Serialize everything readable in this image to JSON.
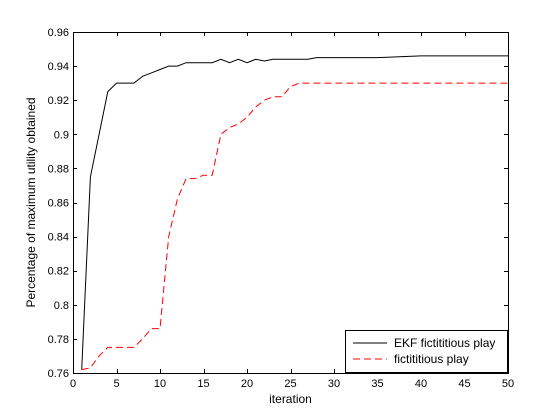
{
  "chart_data": {
    "type": "line",
    "title": "",
    "xlabel": "iteration",
    "ylabel": "Percentage of maximum utility obtained",
    "xlim": [
      0,
      50
    ],
    "ylim": [
      0.76,
      0.96
    ],
    "x_ticks": [
      0,
      5,
      10,
      15,
      20,
      25,
      30,
      35,
      40,
      45,
      50
    ],
    "y_ticks": [
      0.76,
      0.78,
      0.8,
      0.82,
      0.84,
      0.86,
      0.88,
      0.9,
      0.92,
      0.94,
      0.96
    ],
    "x_tick_labels": [
      "0",
      "5",
      "10",
      "15",
      "20",
      "25",
      "30",
      "35",
      "40",
      "45",
      "50"
    ],
    "y_tick_labels": [
      "0.76",
      "0.78",
      "0.8",
      "0.82",
      "0.84",
      "0.86",
      "0.88",
      "0.9",
      "0.92",
      "0.94",
      "0.96"
    ],
    "grid": false,
    "legend_position": "bottom-right",
    "series": [
      {
        "name": "EKF fictititious play",
        "color": "#000000",
        "dash": "solid",
        "x": [
          1,
          2,
          3,
          4,
          5,
          6,
          7,
          8,
          9,
          10,
          11,
          12,
          13,
          14,
          15,
          16,
          17,
          18,
          19,
          20,
          21,
          22,
          23,
          24,
          25,
          26,
          27,
          28,
          29,
          30,
          35,
          40,
          45,
          50
        ],
        "y": [
          0.762,
          0.875,
          0.9,
          0.925,
          0.93,
          0.93,
          0.93,
          0.934,
          0.936,
          0.938,
          0.94,
          0.94,
          0.942,
          0.942,
          0.942,
          0.942,
          0.944,
          0.942,
          0.944,
          0.942,
          0.944,
          0.943,
          0.944,
          0.944,
          0.944,
          0.944,
          0.944,
          0.945,
          0.945,
          0.945,
          0.945,
          0.946,
          0.946,
          0.946
        ]
      },
      {
        "name": "fictititious play",
        "color": "#ff0000",
        "dash": "dashed",
        "x": [
          1,
          2,
          3,
          4,
          5,
          6,
          7,
          8,
          9,
          10,
          11,
          12,
          13,
          14,
          15,
          16,
          17,
          18,
          19,
          20,
          21,
          22,
          23,
          24,
          25,
          26,
          27,
          28,
          30,
          35,
          40,
          45,
          50
        ],
        "y": [
          0.762,
          0.763,
          0.77,
          0.775,
          0.775,
          0.775,
          0.775,
          0.78,
          0.786,
          0.786,
          0.84,
          0.862,
          0.874,
          0.874,
          0.876,
          0.876,
          0.9,
          0.904,
          0.906,
          0.91,
          0.916,
          0.92,
          0.922,
          0.922,
          0.928,
          0.93,
          0.93,
          0.93,
          0.93,
          0.93,
          0.93,
          0.93,
          0.93
        ]
      }
    ]
  }
}
